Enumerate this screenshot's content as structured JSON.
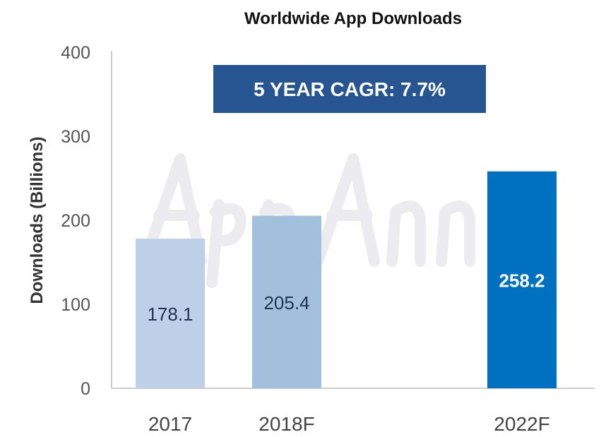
{
  "chart_data": {
    "type": "bar",
    "title": "Worldwide App Downloads",
    "ylabel": "Downloads (Billions)",
    "xlabel": "",
    "categories": [
      "2017",
      "2018F",
      "2022F"
    ],
    "values": [
      178.1,
      205.4,
      258.2
    ],
    "data_labels": [
      "178.1",
      "205.4",
      "258.2"
    ],
    "ylim": [
      0,
      400
    ],
    "yticks": [
      0,
      100,
      200,
      300,
      400
    ],
    "ytick_labels": [
      "0",
      "100",
      "200",
      "300",
      "400"
    ],
    "grid": false,
    "bar_colors": [
      "#bdd0e8",
      "#a2bfdc",
      "#0070c0"
    ],
    "label_colors": [
      "#1f3550",
      "#1f3550",
      "#ffffff"
    ],
    "annotation": "5 YEAR CAGR: 7.7%",
    "annotation_color": "#275591",
    "watermark": "App Annie"
  }
}
